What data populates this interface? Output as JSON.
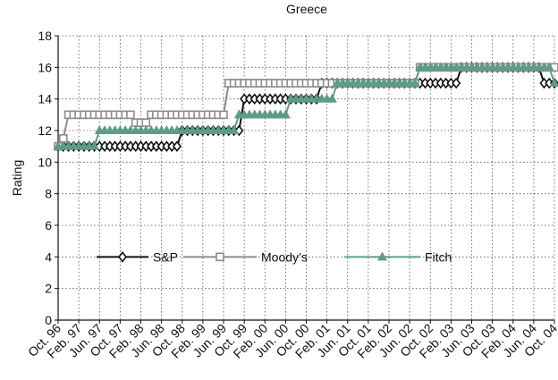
{
  "chart_data": {
    "type": "line",
    "title": "Greece",
    "ylabel": "Rating",
    "categories": [
      "Oct. 96",
      null,
      null,
      null,
      "Feb. 97",
      null,
      null,
      null,
      "Jun. 97",
      null,
      null,
      null,
      "Oct. 97",
      null,
      null,
      null,
      "Feb. 98",
      null,
      null,
      null,
      "Jun. 98",
      null,
      null,
      null,
      "Oct. 98",
      null,
      null,
      null,
      "Feb. 99",
      null,
      null,
      null,
      "Jun. 99",
      null,
      null,
      null,
      "Oct. 99",
      null,
      null,
      null,
      "Feb. 00",
      null,
      null,
      null,
      "Jun. 00",
      null,
      null,
      null,
      "Oct. 00",
      null,
      null,
      null,
      "Feb. 01",
      null,
      null,
      null,
      "Jun. 01",
      null,
      null,
      null,
      "Oct. 01",
      null,
      null,
      null,
      "Feb. 02",
      null,
      null,
      null,
      "Jun. 02",
      null,
      null,
      null,
      "Oct. 02",
      null,
      null,
      null,
      "Feb. 03",
      null,
      null,
      null,
      "Jun. 03",
      null,
      null,
      null,
      "Oct. 03",
      null,
      null,
      null,
      "Feb. 04",
      null,
      null,
      null,
      "Jun. 04",
      null,
      null,
      null,
      "Oct. 04"
    ],
    "series": [
      {
        "name": "S&P",
        "color": "#111111",
        "marker": "diamond",
        "values": [
          11,
          11,
          11,
          11,
          11,
          11,
          11,
          11,
          11,
          11,
          11,
          11,
          11,
          11,
          11,
          11,
          11,
          11,
          11,
          11,
          11,
          11,
          11,
          11,
          12,
          12,
          12,
          12,
          12,
          12,
          12,
          12,
          12,
          12,
          12,
          12,
          14,
          14,
          14,
          14,
          14,
          14,
          14,
          14,
          14,
          14,
          14,
          14,
          14,
          14,
          14,
          15,
          15,
          15,
          15,
          15,
          15,
          15,
          15,
          15,
          15,
          15,
          15,
          15,
          15,
          15,
          15,
          15,
          15,
          15,
          15,
          15,
          15,
          15,
          15,
          15,
          15,
          15,
          16,
          16,
          16,
          16,
          16,
          16,
          16,
          16,
          16,
          16,
          16,
          16,
          16,
          16,
          16,
          16,
          15,
          15,
          15
        ]
      },
      {
        "name": "Moody’s",
        "color": "#8c8c8c",
        "marker": "square",
        "values": [
          11,
          11.5,
          13,
          13,
          13,
          13,
          13,
          13,
          13,
          13,
          13,
          13,
          13,
          13,
          13,
          12.5,
          12.5,
          12.5,
          13,
          13,
          13,
          13,
          13,
          13,
          13,
          13,
          13,
          13,
          13,
          13,
          13,
          13,
          13,
          15,
          15,
          15,
          15,
          15,
          15,
          15,
          15,
          15,
          15,
          15,
          15,
          15,
          15,
          15,
          15,
          15,
          15,
          15,
          15,
          15,
          15,
          15,
          15,
          15,
          15,
          15,
          15,
          15,
          15,
          15,
          15,
          15,
          15,
          15,
          15,
          15,
          16,
          16,
          16,
          16,
          16,
          16,
          16,
          16,
          16,
          16,
          16,
          16,
          16,
          16,
          16,
          16,
          16,
          16,
          16,
          16,
          16,
          16,
          16,
          16,
          16,
          16,
          16
        ]
      },
      {
        "name": "Fitch",
        "color": "#5e9c88",
        "marker": "triangle",
        "values": [
          11,
          11,
          11,
          11,
          11,
          11,
          11,
          11,
          12,
          12,
          12,
          12,
          12,
          12,
          12,
          12,
          12,
          12,
          12,
          12,
          12,
          12,
          12,
          12,
          12,
          12,
          12,
          12,
          12,
          12,
          12,
          12,
          12,
          12,
          12,
          13,
          13,
          13,
          13,
          13,
          13,
          13,
          13,
          13,
          13,
          14,
          14,
          14,
          14,
          14,
          14,
          14,
          14,
          14,
          15,
          15,
          15,
          15,
          15,
          15,
          15,
          15,
          15,
          15,
          15,
          15,
          15,
          15,
          15,
          15,
          16,
          16,
          16,
          16,
          16,
          16,
          16,
          16,
          16,
          16,
          16,
          16,
          16,
          16,
          16,
          16,
          16,
          16,
          16,
          16,
          16,
          16,
          16,
          16,
          16,
          16,
          15
        ]
      }
    ],
    "ylim": [
      0,
      18
    ],
    "yticks": [
      0,
      2,
      4,
      6,
      8,
      10,
      12,
      14,
      16,
      18
    ],
    "grid": true,
    "legend": "lower-left"
  }
}
